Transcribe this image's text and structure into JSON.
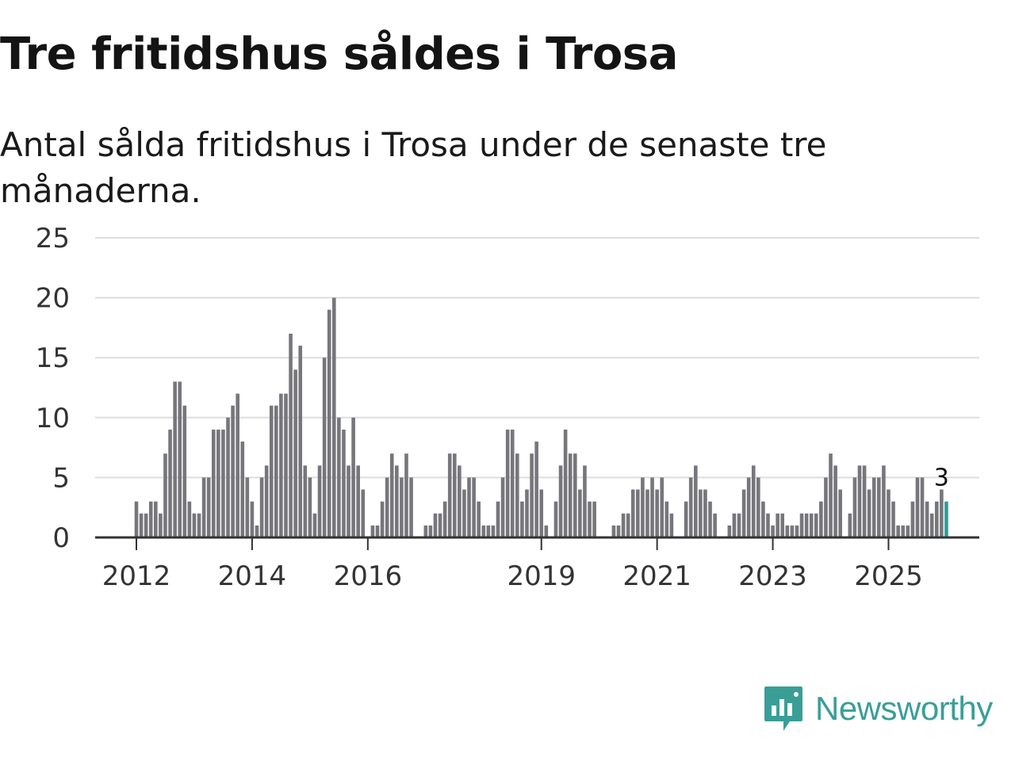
{
  "title": "Tre fritidshus såldes i Trosa",
  "subtitle": "Antal sålda fritidshus i Trosa under de senaste tre månaderna.",
  "brand": {
    "name": "Newsworthy",
    "icon": "newsworthy-logo-icon",
    "color": "#3a9e97"
  },
  "chart_data": {
    "type": "bar",
    "title": "Tre fritidshus såldes i Trosa",
    "subtitle": "Antal sålda fritidshus i Trosa under de senaste tre månaderna.",
    "xlabel": "",
    "ylabel": "",
    "ylim": [
      0,
      25
    ],
    "yticks": [
      0,
      5,
      10,
      15,
      20,
      25
    ],
    "grid": true,
    "bar_color": "#76767b",
    "highlight_color": "#2a9d9a",
    "x_start": "2012-01",
    "xticks": [
      {
        "label": "2012",
        "index": 0
      },
      {
        "label": "2014",
        "index": 24
      },
      {
        "label": "2016",
        "index": 48
      },
      {
        "label": "2019",
        "index": 84
      },
      {
        "label": "2021",
        "index": 108
      },
      {
        "label": "2023",
        "index": 132
      },
      {
        "label": "2025",
        "index": 156
      }
    ],
    "values": [
      3,
      2,
      2,
      3,
      3,
      2,
      7,
      9,
      13,
      13,
      11,
      3,
      2,
      2,
      5,
      5,
      9,
      9,
      9,
      10,
      11,
      12,
      8,
      5,
      3,
      1,
      5,
      6,
      11,
      11,
      12,
      12,
      17,
      14,
      16,
      6,
      5,
      2,
      6,
      15,
      19,
      20,
      10,
      9,
      6,
      10,
      6,
      4,
      0,
      1,
      1,
      3,
      5,
      7,
      6,
      5,
      7,
      5,
      0,
      0,
      1,
      1,
      2,
      2,
      3,
      7,
      7,
      6,
      4,
      5,
      5,
      3,
      1,
      1,
      1,
      3,
      5,
      9,
      9,
      7,
      3,
      4,
      7,
      8,
      4,
      1,
      0,
      3,
      6,
      9,
      7,
      7,
      4,
      6,
      3,
      3,
      0,
      0,
      0,
      1,
      1,
      2,
      2,
      4,
      4,
      5,
      4,
      5,
      4,
      5,
      3,
      2,
      0,
      0,
      3,
      5,
      6,
      4,
      4,
      3,
      2,
      0,
      0,
      1,
      2,
      2,
      4,
      5,
      6,
      5,
      3,
      2,
      1,
      2,
      2,
      1,
      1,
      1,
      2,
      2,
      2,
      2,
      3,
      5,
      7,
      6,
      4,
      0,
      2,
      5,
      6,
      6,
      4,
      5,
      5,
      6,
      4,
      3,
      1,
      1,
      1,
      3,
      5,
      5,
      3,
      2,
      3,
      4,
      3
    ],
    "highlight_last": true,
    "annotation": {
      "index": 166,
      "text": "3"
    }
  }
}
